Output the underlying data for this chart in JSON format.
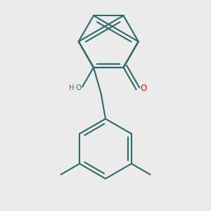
{
  "background_color": "#ebebeb",
  "bond_color": "#2d6b6b",
  "bond_width": 1.5,
  "atom_colors": {
    "O_carbonyl": "#ff0000",
    "O_hydroxyl": "#2d6b6b"
  },
  "figsize": [
    3.0,
    3.0
  ],
  "dpi": 100
}
